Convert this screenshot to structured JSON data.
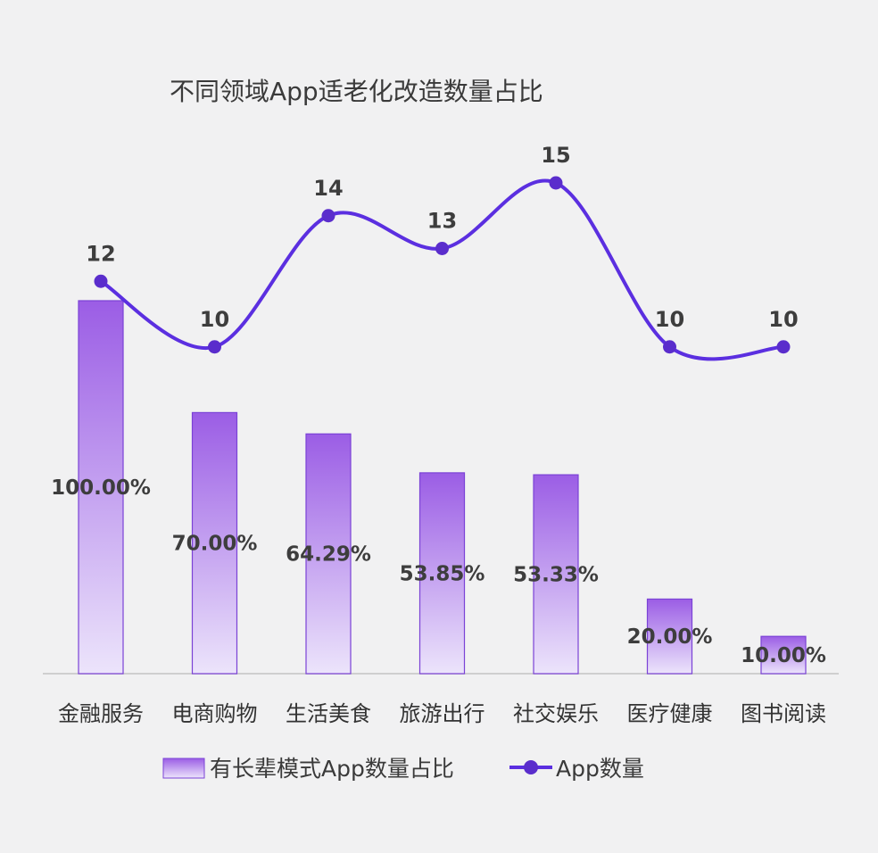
{
  "chart_data": {
    "type": "bar",
    "title": "不同领域App适老化改造数量占比",
    "categories": [
      "金融服务",
      "电商购物",
      "生活美食",
      "旅游出行",
      "社交娱乐",
      "医疗健康",
      "图书阅读"
    ],
    "series": [
      {
        "name": "有长辈模式App数量占比",
        "type": "bar",
        "values": [
          100.0,
          70.0,
          64.29,
          53.85,
          53.33,
          20.0,
          10.0
        ],
        "labels": [
          "100.00%",
          "70.00%",
          "64.29%",
          "53.85%",
          "53.33%",
          "20.00%",
          "10.00%"
        ],
        "unit": "%"
      },
      {
        "name": "App数量",
        "type": "line",
        "smooth": true,
        "values": [
          12,
          10,
          14,
          13,
          15,
          10,
          10
        ],
        "labels": [
          "12",
          "10",
          "14",
          "13",
          "15",
          "10",
          "10"
        ]
      }
    ],
    "legend_position": "bottom",
    "grid": false,
    "colors": {
      "bar_top": "#9b5de5",
      "bar_bottom": "#ece4fb",
      "bar_stroke": "#7b42d6",
      "line": "#5b2fe0",
      "point": "#5a2dcc"
    }
  }
}
